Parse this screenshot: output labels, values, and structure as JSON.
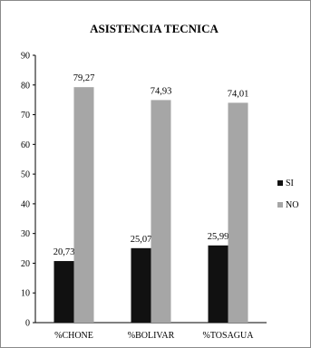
{
  "chart_data": {
    "type": "bar",
    "title": "ASISTENCIA TECNICA",
    "categories": [
      "%CHONE",
      "%BOLIVAR",
      "%TOSAGUA"
    ],
    "series": [
      {
        "name": "SI",
        "values": [
          20.73,
          25.07,
          25.99
        ],
        "labels": [
          "20,73",
          "25,07",
          "25,99"
        ],
        "color": "#111111"
      },
      {
        "name": "NO",
        "values": [
          79.27,
          74.93,
          74.01
        ],
        "labels": [
          "79,27",
          "74,93",
          "74,01"
        ],
        "color": "#a6a6a6"
      }
    ],
    "ylim": [
      0,
      90
    ],
    "yticks": [
      "0",
      "10",
      "20",
      "30",
      "40",
      "50",
      "60",
      "70",
      "80",
      "90"
    ],
    "grid": false,
    "legend_position": "right"
  }
}
